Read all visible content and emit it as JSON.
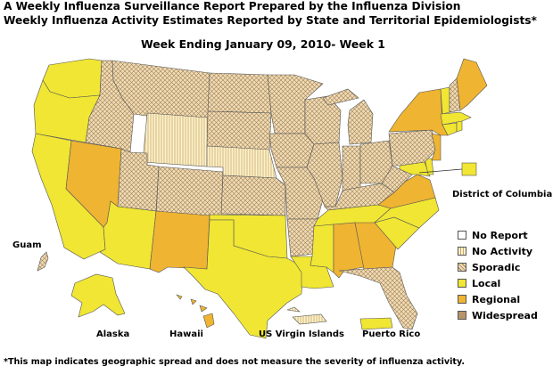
{
  "header": {
    "line1": "A Weekly Influenza Surveillance Report Prepared by the Influenza Division",
    "line2": "Weekly Influenza Activity Estimates Reported by State and Territorial Epidemiologists*",
    "week": "Week Ending January 09, 2010- Week 1"
  },
  "colors": {
    "No Report": "#ffffff",
    "No Activity": "#fcf2cc",
    "Sporadic": "#efdcb6",
    "Local": "#f0e633",
    "Regional": "#efb432",
    "Widespread": "#b8946a"
  },
  "legend": [
    {
      "label": "No Report",
      "color": "#ffffff"
    },
    {
      "label": "No Activity",
      "color": "#fcf2cc"
    },
    {
      "label": "Sporadic",
      "color": "#efdcb6"
    },
    {
      "label": "Local",
      "color": "#f0e633"
    },
    {
      "label": "Regional",
      "color": "#efb432"
    },
    {
      "label": "Widespread",
      "color": "#b8946a"
    }
  ],
  "labels": {
    "dc": "District of Columbia",
    "guam": "Guam",
    "alaska": "Alaska",
    "hawaii": "Hawaii",
    "usvi": "US Virgin Islands",
    "pr": "Puerto Rico"
  },
  "states": {
    "WA": "Local",
    "OR": "Local",
    "CA": "Local",
    "NV": "Regional",
    "ID": "Sporadic",
    "MT": "Sporadic",
    "WY": "No Activity",
    "UT": "Sporadic",
    "AZ": "Local",
    "CO": "Sporadic",
    "NM": "Regional",
    "ND": "Sporadic",
    "SD": "Sporadic",
    "NE": "No Activity",
    "KS": "Sporadic",
    "OK": "Local",
    "TX": "Local",
    "MN": "Sporadic",
    "IA": "Sporadic",
    "MO": "Sporadic",
    "AR": "Sporadic",
    "LA": "Local",
    "WI": "Sporadic",
    "IL": "Sporadic",
    "MI": "Sporadic",
    "IN": "Sporadic",
    "OH": "Sporadic",
    "KY": "Sporadic",
    "TN": "Local",
    "MS": "Local",
    "AL": "Regional",
    "GA": "Regional",
    "FL": "Sporadic",
    "SC": "Local",
    "NC": "Local",
    "VA": "Regional",
    "WV": "Sporadic",
    "PA": "Sporadic",
    "NY": "Regional",
    "VT": "Local",
    "NH": "Sporadic",
    "ME": "Regional",
    "MA": "Local",
    "RI": "Local",
    "CT": "Local",
    "NJ": "Regional",
    "DE": "Local",
    "MD": "Local",
    "DC": "Local",
    "AK": "Local",
    "HI": "Regional",
    "GU": "Sporadic",
    "VI": "No Activity",
    "PR": "Local"
  },
  "footnote": "*This map indicates geographic spread and does not measure the severity of influenza activity."
}
